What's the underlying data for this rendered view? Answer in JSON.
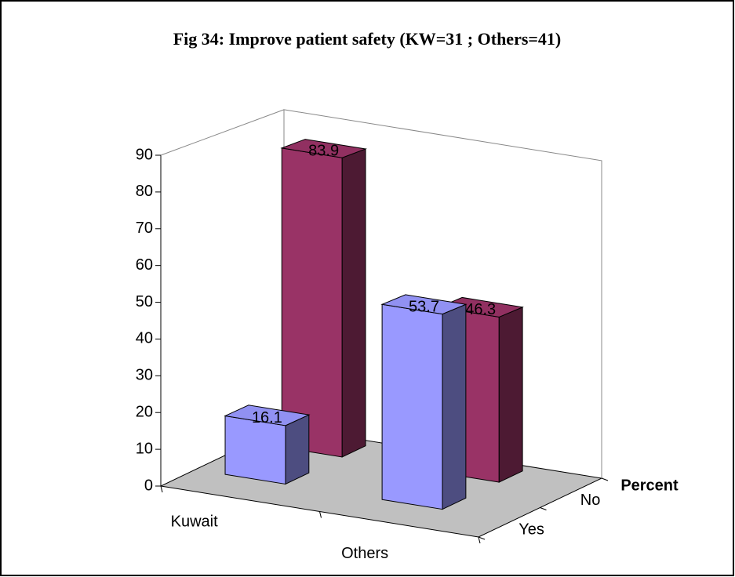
{
  "chart_data": {
    "type": "bar3d",
    "title": "Fig 34: Improve patient safety (KW=31 ; Others=41)",
    "categories": [
      "Kuwait",
      "Others"
    ],
    "series": [
      {
        "name": "Yes",
        "color": "#9999ff",
        "values": [
          16.1,
          53.7
        ]
      },
      {
        "name": "No",
        "color": "#993366",
        "values": [
          83.9,
          46.3
        ]
      }
    ],
    "depth_axis_label": "Percent",
    "ylim": [
      0,
      90
    ],
    "yticks": [
      0,
      10,
      20,
      30,
      40,
      50,
      60,
      70,
      80,
      90
    ]
  }
}
